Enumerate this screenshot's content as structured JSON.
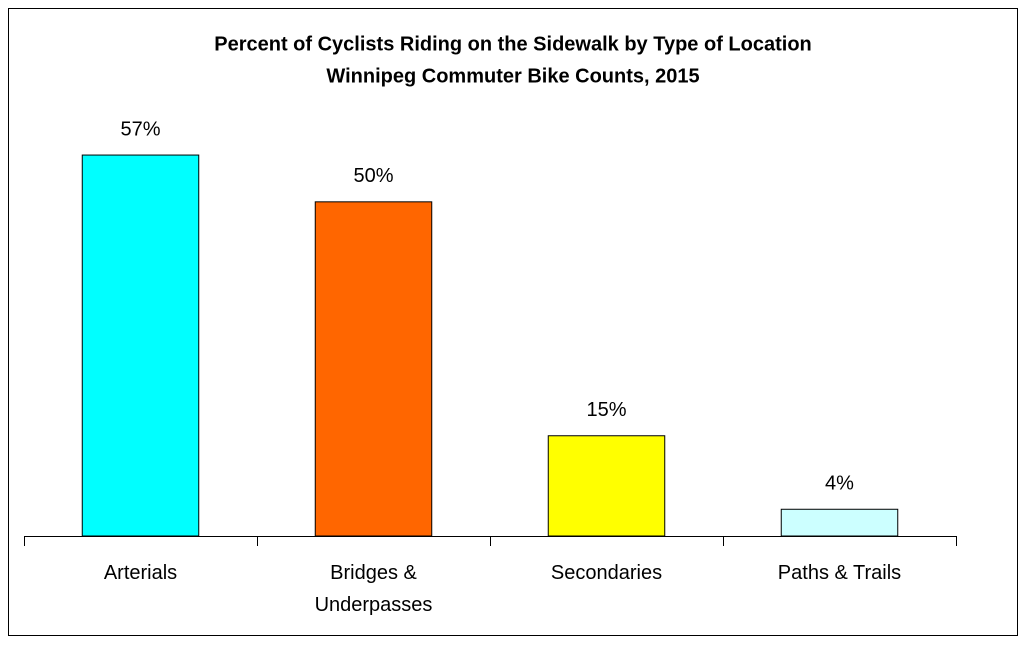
{
  "chart_data": {
    "type": "bar",
    "title": "Percent of Cyclists Riding on the Sidewalk by Type of Location",
    "subtitle": "Winnipeg Commuter Bike Counts, 2015",
    "categories": [
      "Arterials",
      "Bridges & Underpasses",
      "Secondaries",
      "Paths & Trails"
    ],
    "values": [
      57,
      50,
      15,
      4
    ],
    "value_labels": [
      "57%",
      "50%",
      "15%",
      "4%"
    ],
    "colors": [
      "#00ffff",
      "#ff6600",
      "#ffff00",
      "#ccffff"
    ],
    "ylim": [
      0,
      60
    ]
  }
}
